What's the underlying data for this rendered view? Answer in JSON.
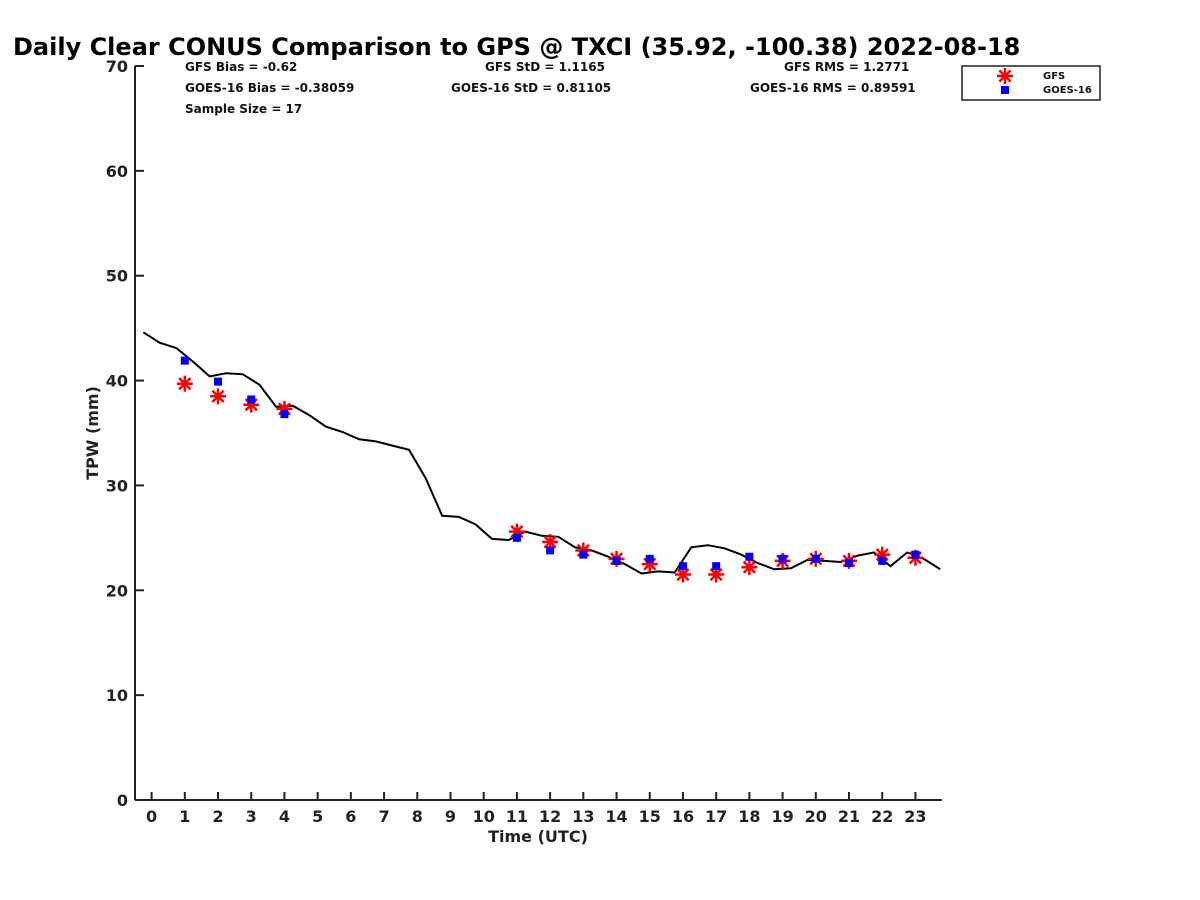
{
  "chart_data": {
    "type": "scatter",
    "title": "Daily Clear CONUS Comparison to GPS @ TXCI (35.92, -100.38) 2022-08-18",
    "xlabel": "Time (UTC)",
    "ylabel": "TPW (mm)",
    "xlim": [
      -0.5,
      23.8
    ],
    "ylim": [
      0,
      70
    ],
    "x_ticks": [
      0,
      1,
      2,
      3,
      4,
      5,
      6,
      7,
      8,
      9,
      10,
      11,
      12,
      13,
      14,
      15,
      16,
      17,
      18,
      19,
      20,
      21,
      22,
      23
    ],
    "y_ticks": [
      0,
      10,
      20,
      30,
      40,
      50,
      60,
      70
    ],
    "grid": false,
    "legend_position": "top-right",
    "colors": {
      "gfs": "#ff0000",
      "goes": "#0000ff",
      "gps": "#000000"
    },
    "stats": {
      "gfs_bias": "GFS Bias = -0.62",
      "goes_bias": "GOES-16 Bias = -0.38059",
      "sample_size": "Sample Size = 17",
      "gfs_std": "GFS StD = 1.1165",
      "goes_std": "GOES-16 StD = 0.81105",
      "gfs_rms": "GFS RMS = 1.2771",
      "goes_rms": "GOES-16 RMS = 0.89591"
    },
    "series": [
      {
        "name": "GFS",
        "marker": "asterisk",
        "x": [
          1,
          2,
          3,
          4,
          11,
          12,
          13,
          14,
          15,
          16,
          17,
          18,
          19,
          20,
          21,
          22,
          23
        ],
        "y": [
          39.7,
          38.5,
          37.7,
          37.3,
          25.6,
          24.6,
          23.8,
          23.0,
          22.5,
          21.5,
          21.5,
          22.2,
          22.8,
          23.0,
          22.8,
          23.4,
          23.1
        ]
      },
      {
        "name": "GOES-16",
        "marker": "square",
        "x": [
          1,
          2,
          3,
          4,
          11,
          12,
          13,
          14,
          15,
          16,
          17,
          18,
          19,
          20,
          21,
          22,
          23
        ],
        "y": [
          41.9,
          39.9,
          38.2,
          36.8,
          25.0,
          23.8,
          23.4,
          22.8,
          23.0,
          22.3,
          22.3,
          23.2,
          23.0,
          23.0,
          22.6,
          22.8,
          23.4
        ]
      },
      {
        "marker": "line",
        "x": [
          -0.25,
          0.25,
          0.75,
          1.25,
          1.75,
          2.25,
          2.75,
          3.25,
          3.75,
          4.25,
          4.75,
          5.25,
          5.75,
          6.25,
          6.75,
          7.25,
          7.75,
          8.25,
          8.75,
          9.25,
          9.75,
          10.25,
          10.75,
          11.25,
          11.75,
          12.25,
          12.75,
          13.25,
          13.75,
          14.25,
          14.75,
          15.25,
          15.75,
          16.25,
          16.75,
          17.25,
          17.75,
          18.25,
          18.75,
          19.25,
          19.75,
          20.25,
          20.75,
          21.25,
          21.75,
          22.25,
          22.75,
          23.25,
          23.75
        ],
        "y": [
          44.6,
          43.6,
          43.1,
          41.8,
          40.4,
          40.7,
          40.6,
          39.6,
          37.5,
          37.6,
          36.7,
          35.6,
          35.1,
          34.4,
          34.2,
          33.8,
          33.4,
          30.7,
          27.1,
          27.0,
          26.3,
          24.9,
          24.8,
          25.6,
          25.2,
          25.1,
          24.1,
          23.8,
          23.2,
          22.5,
          21.6,
          21.8,
          21.7,
          24.1,
          24.3,
          24.0,
          23.4,
          22.6,
          22.0,
          22.1,
          22.9,
          22.8,
          22.7,
          23.3,
          23.6,
          22.3,
          23.6,
          23.0,
          22.0
        ]
      }
    ]
  }
}
